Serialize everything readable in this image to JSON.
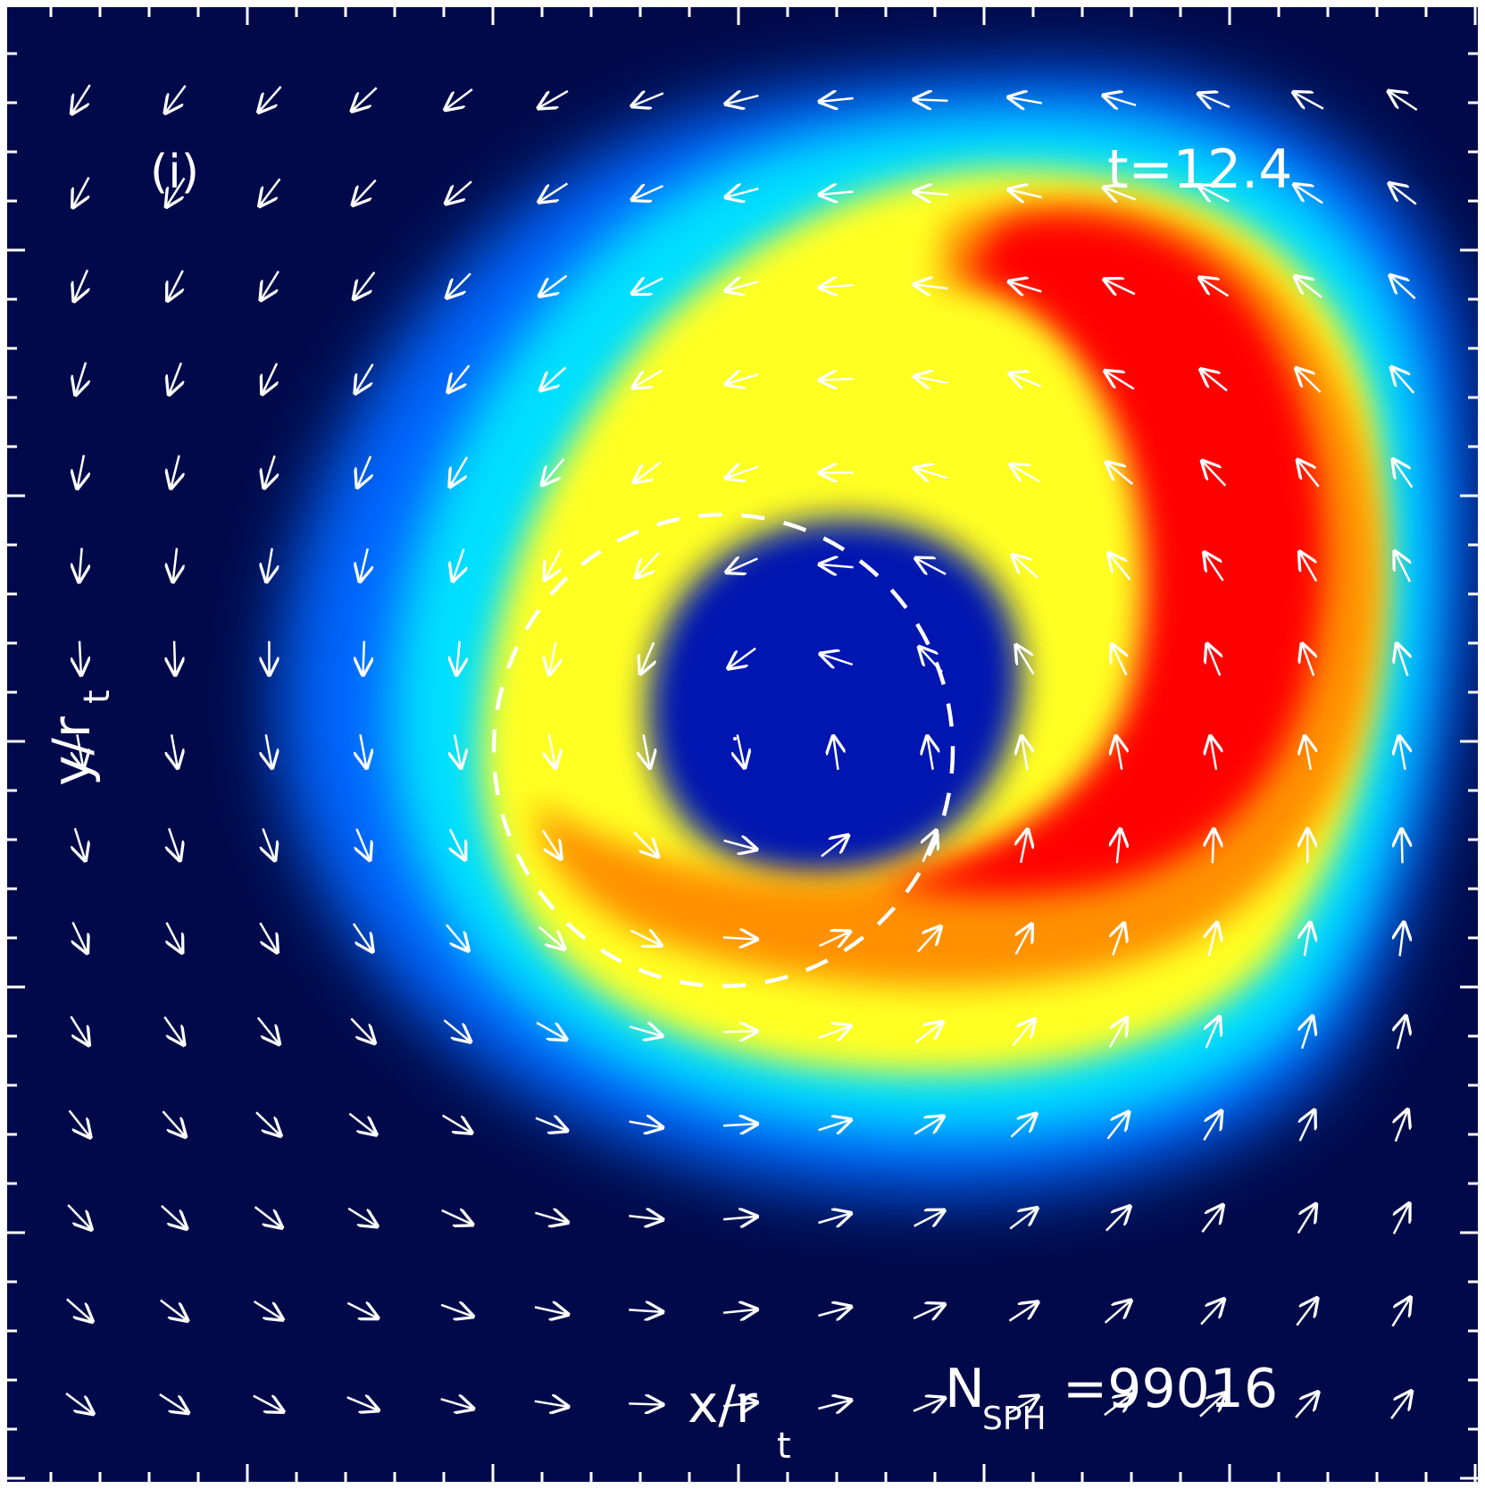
{
  "panel_label": "(i)",
  "time_label": "t=12.4",
  "axis": {
    "xlabel_main": "x/r",
    "xlabel_sub": "t",
    "ylabel_main": "y/r",
    "ylabel_sub": "t"
  },
  "particle_count": {
    "prefix": "N",
    "subscript": "SPH",
    "value": "=99016"
  },
  "colors": {
    "background": "#000a4a",
    "arrows": "#ffffff",
    "ticks": "#ffffff",
    "colormap": [
      "#00004d",
      "#0012b0",
      "#0066ff",
      "#00e0ff",
      "#a8ff6a",
      "#ffff20",
      "#ff9000",
      "#ff0000"
    ]
  },
  "chart_data": {
    "type": "heatmap",
    "overlay": "velocity vector field",
    "colormap": "jet",
    "grid_points": 15,
    "dashed_contour": "circle",
    "tick_marks": "inward on all four sides",
    "tick_labels": "none"
  }
}
